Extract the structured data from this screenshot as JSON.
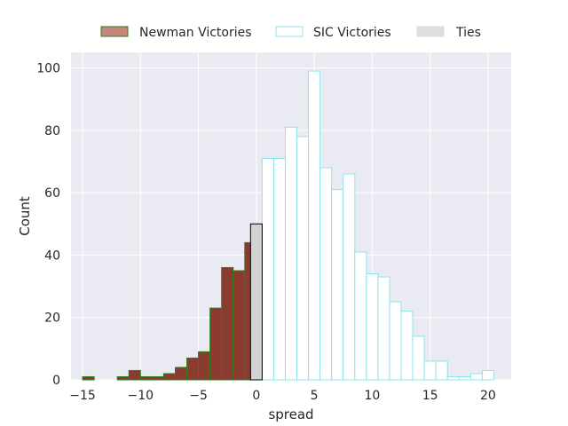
{
  "chart_data": {
    "type": "bar",
    "title": "",
    "xlabel": "spread",
    "ylabel": "Count",
    "xlim": [
      -16,
      22
    ],
    "ylim": [
      0,
      105
    ],
    "grid": true,
    "legend_position": "top-center, outside plot",
    "x_ticks": [
      -15,
      -10,
      -5,
      0,
      5,
      10,
      15,
      20
    ],
    "x_tick_labels": [
      "−15",
      "−10",
      "−5",
      "0",
      "5",
      "10",
      "15",
      "20"
    ],
    "y_ticks": [
      0,
      20,
      40,
      60,
      80,
      100
    ],
    "y_tick_labels": [
      "0",
      "20",
      "40",
      "60",
      "80",
      "100"
    ],
    "bin_width": 1,
    "series": [
      {
        "name": "Newman Victories",
        "fill": "#8b3a2f",
        "edge": "#2e7d1e",
        "bins": [
          {
            "x": -14.5,
            "count": 1
          },
          {
            "x": -13.5,
            "count": 0
          },
          {
            "x": -12.5,
            "count": 0
          },
          {
            "x": -11.5,
            "count": 1
          },
          {
            "x": -10.5,
            "count": 3
          },
          {
            "x": -9.5,
            "count": 1
          },
          {
            "x": -8.5,
            "count": 1
          },
          {
            "x": -7.5,
            "count": 2
          },
          {
            "x": -6.5,
            "count": 4
          },
          {
            "x": -5.5,
            "count": 7
          },
          {
            "x": -4.5,
            "count": 9
          },
          {
            "x": -3.5,
            "count": 23
          },
          {
            "x": -2.5,
            "count": 36
          },
          {
            "x": -1.5,
            "count": 35
          },
          {
            "x": -0.5,
            "count": 44
          }
        ]
      },
      {
        "name": "SIC Victories",
        "fill": "#ffffff",
        "edge": "#8fe3ec",
        "bins": [
          {
            "x": 1,
            "count": 71
          },
          {
            "x": 2,
            "count": 71
          },
          {
            "x": 3,
            "count": 81
          },
          {
            "x": 4,
            "count": 78
          },
          {
            "x": 5,
            "count": 99
          },
          {
            "x": 6,
            "count": 68
          },
          {
            "x": 7,
            "count": 61
          },
          {
            "x": 8,
            "count": 66
          },
          {
            "x": 9,
            "count": 41
          },
          {
            "x": 10,
            "count": 34
          },
          {
            "x": 11,
            "count": 33
          },
          {
            "x": 12,
            "count": 25
          },
          {
            "x": 13,
            "count": 22
          },
          {
            "x": 14,
            "count": 14
          },
          {
            "x": 15,
            "count": 6
          },
          {
            "x": 16,
            "count": 6
          },
          {
            "x": 17,
            "count": 1
          },
          {
            "x": 18,
            "count": 1
          },
          {
            "x": 19,
            "count": 2
          },
          {
            "x": 20,
            "count": 3
          }
        ]
      },
      {
        "name": "Ties",
        "fill": "#d3d3d3",
        "edge": "#000000",
        "bins": [
          {
            "x": 0,
            "count": 50
          }
        ]
      }
    ],
    "colors": {
      "plot_background": "#eaeaf2",
      "grid": "#ffffff",
      "text": "#262626",
      "legend_ties_swatch": "#dedede",
      "legend_newman_swatch": "#c4857b"
    }
  }
}
